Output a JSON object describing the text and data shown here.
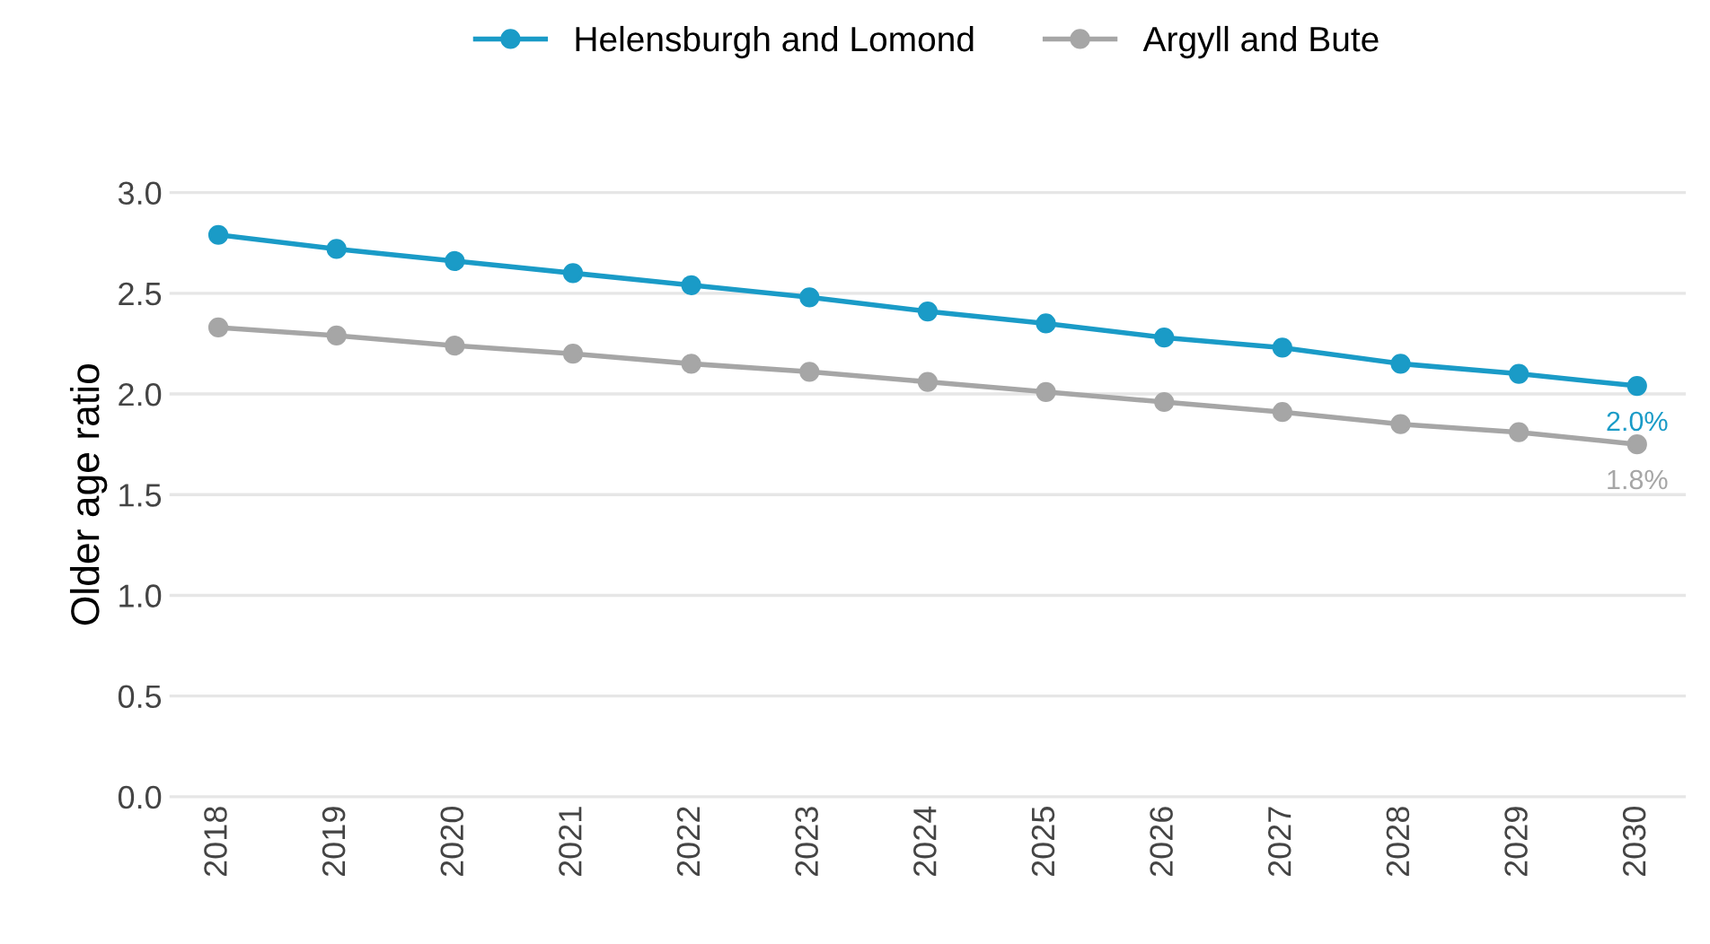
{
  "chart_data": {
    "type": "line",
    "ylabel": "Older age ratio",
    "categories": [
      "2018",
      "2019",
      "2020",
      "2021",
      "2022",
      "2023",
      "2024",
      "2025",
      "2026",
      "2027",
      "2028",
      "2029",
      "2030"
    ],
    "series": [
      {
        "name": "Helensburgh and Lomond",
        "color": "#1a9bc7",
        "values": [
          2.79,
          2.72,
          2.66,
          2.6,
          2.54,
          2.48,
          2.41,
          2.35,
          2.28,
          2.23,
          2.15,
          2.1,
          2.04
        ],
        "value_labels": [
          null,
          null,
          null,
          null,
          null,
          null,
          null,
          null,
          null,
          null,
          null,
          null,
          "2.0%"
        ]
      },
      {
        "name": "Argyll and Bute",
        "color": "#a6a6a6",
        "values": [
          2.33,
          2.29,
          2.24,
          2.2,
          2.15,
          2.11,
          2.06,
          2.01,
          1.96,
          1.91,
          1.85,
          1.81,
          1.75
        ],
        "value_labels": [
          null,
          null,
          null,
          null,
          null,
          null,
          null,
          null,
          null,
          null,
          null,
          null,
          "1.8%"
        ]
      }
    ],
    "ylim": [
      0,
      3
    ],
    "yticks": [
      {
        "value": 0,
        "label": "0.0"
      },
      {
        "value": 0.5,
        "label": "0.5"
      },
      {
        "value": 1,
        "label": "1.0"
      },
      {
        "value": 1.5,
        "label": "1.5"
      },
      {
        "value": 2,
        "label": "2.0"
      },
      {
        "value": 2.5,
        "label": "2.5"
      },
      {
        "value": 3,
        "label": "3.0"
      }
    ],
    "grid": "y",
    "legend": "top",
    "marker": "circle",
    "line_style": "solid"
  }
}
